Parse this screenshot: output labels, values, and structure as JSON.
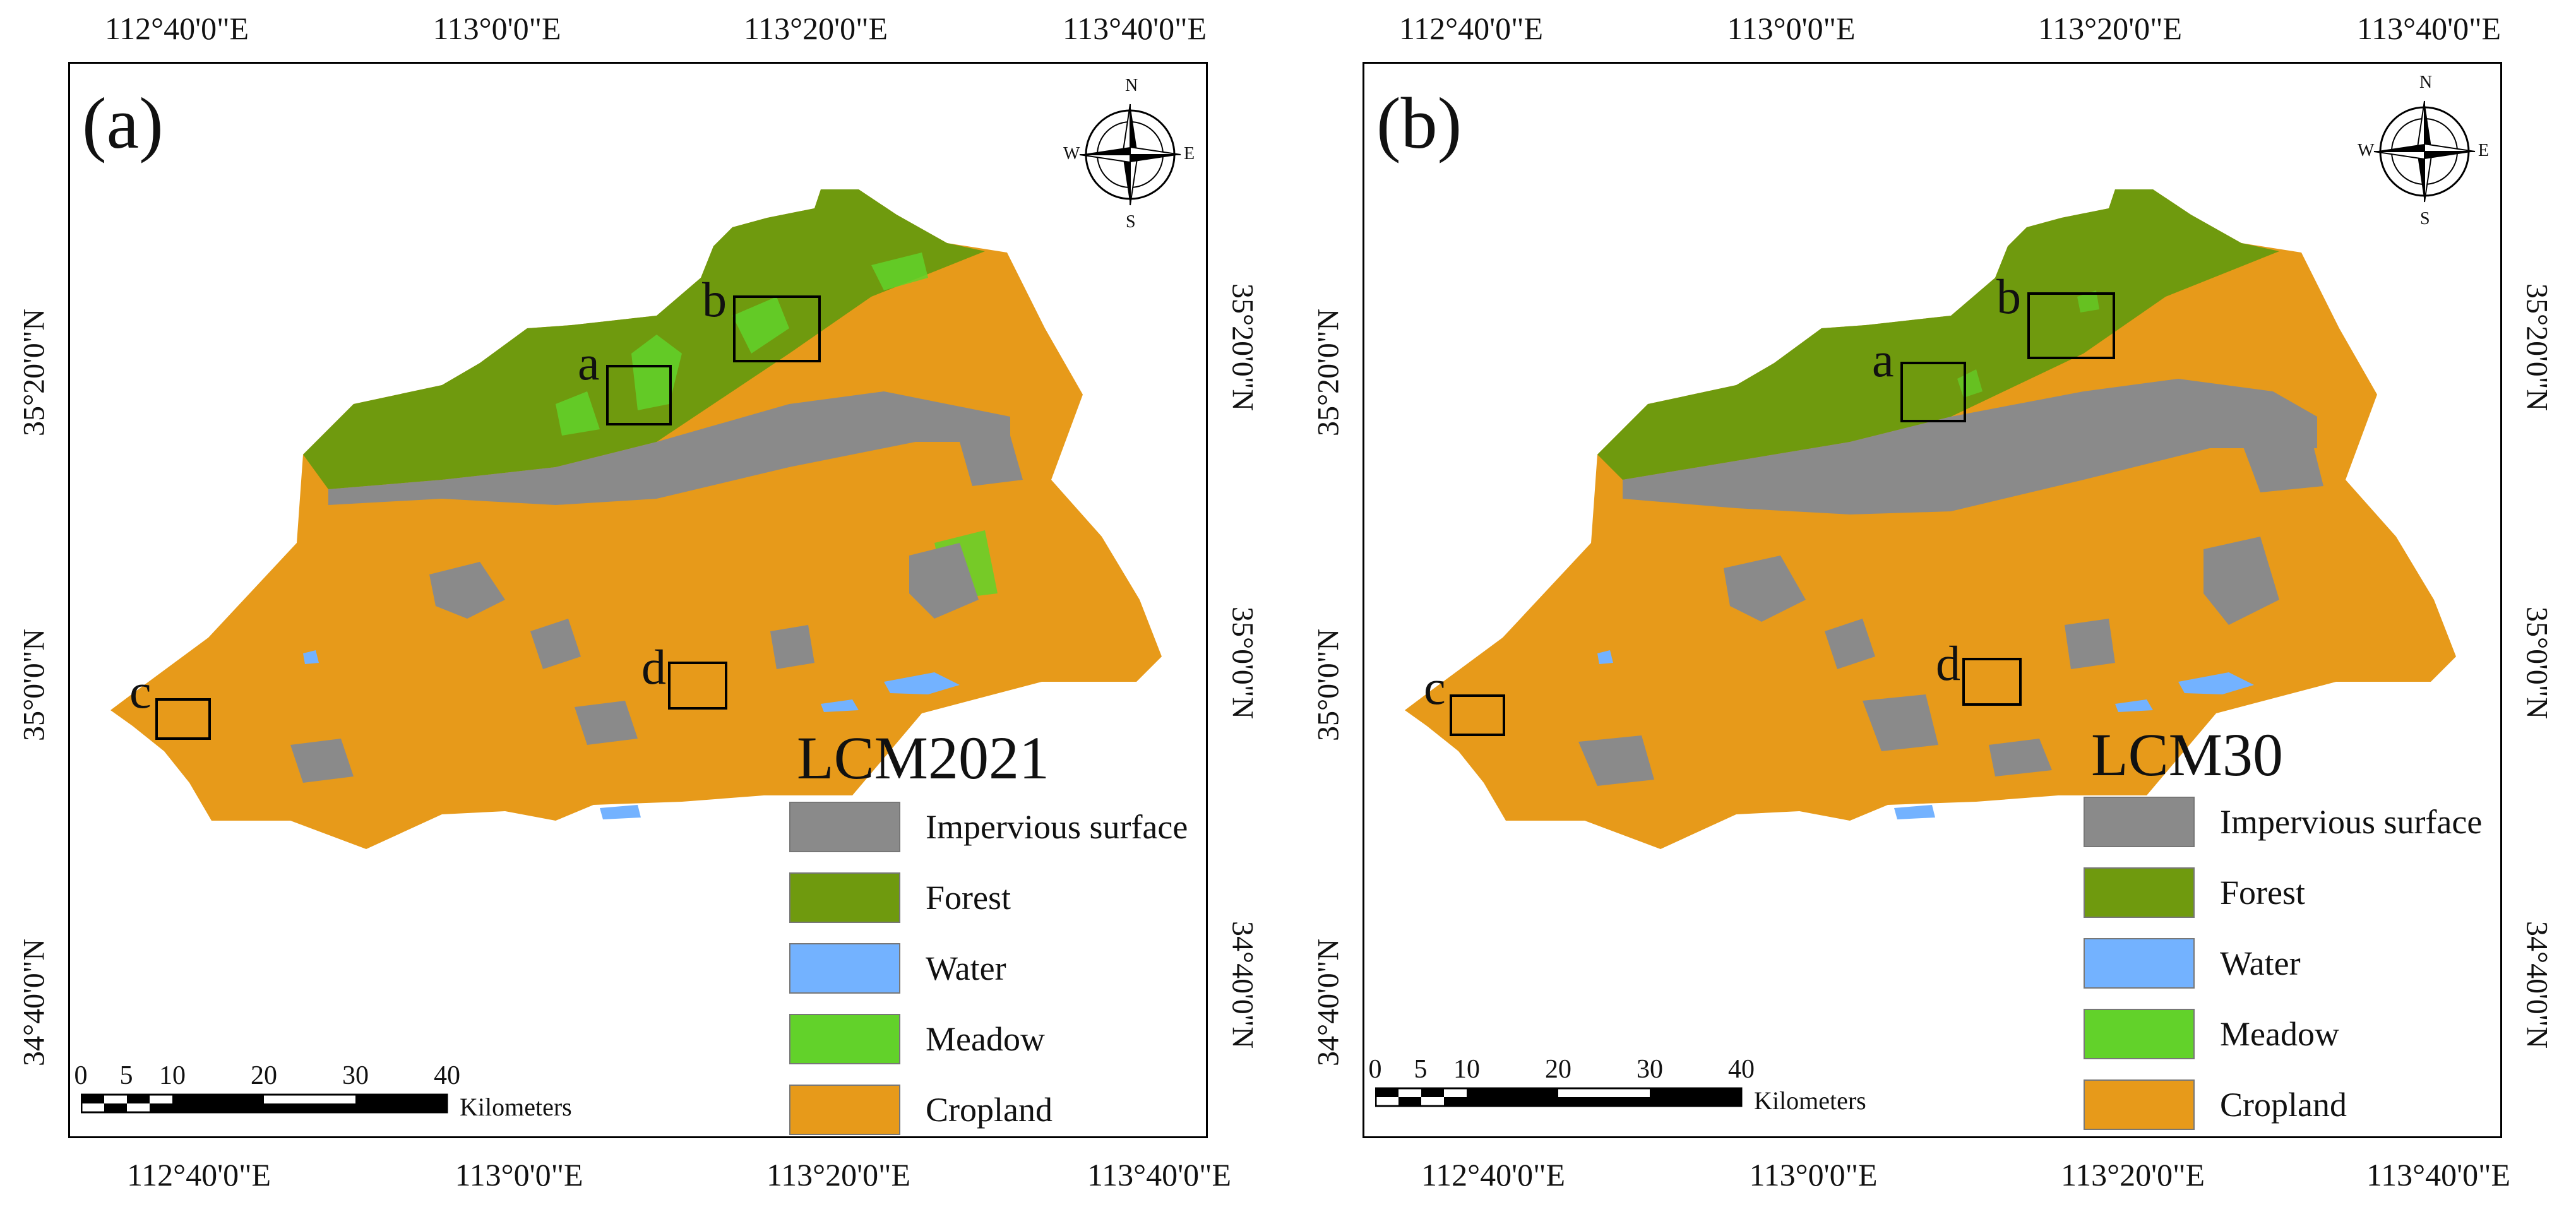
{
  "colors": {
    "impervious": "#8a8a8a",
    "forest": "#6f9a0e",
    "water": "#73b2ff",
    "meadow": "#62d22a",
    "cropland": "#e79a1a"
  },
  "legend": [
    {
      "label": "Impervious surface",
      "color_key": "impervious"
    },
    {
      "label": "Forest",
      "color_key": "forest"
    },
    {
      "label": "Water",
      "color_key": "water"
    },
    {
      "label": "Meadow",
      "color_key": "meadow"
    },
    {
      "label": "Cropland",
      "color_key": "cropland"
    }
  ],
  "longitude_ticks": [
    "112°40'0\"E",
    "113°0'0\"E",
    "113°20'0\"E",
    "113°40'0\"E"
  ],
  "latitude_ticks": [
    "35°20'0\"N",
    "35°0'0\"N",
    "34°40'0\"N"
  ],
  "compass": {
    "n": "N",
    "s": "S",
    "e": "E",
    "w": "W"
  },
  "scale_bar": {
    "ticks": [
      "0",
      "5",
      "10",
      "20",
      "30",
      "40"
    ],
    "unit": "Kilometers"
  },
  "inset_labels": [
    "a",
    "b",
    "c",
    "d"
  ],
  "panels": [
    {
      "label": "(a)",
      "title": "LCM2021"
    },
    {
      "label": "(b)",
      "title": "LCM30"
    }
  ]
}
